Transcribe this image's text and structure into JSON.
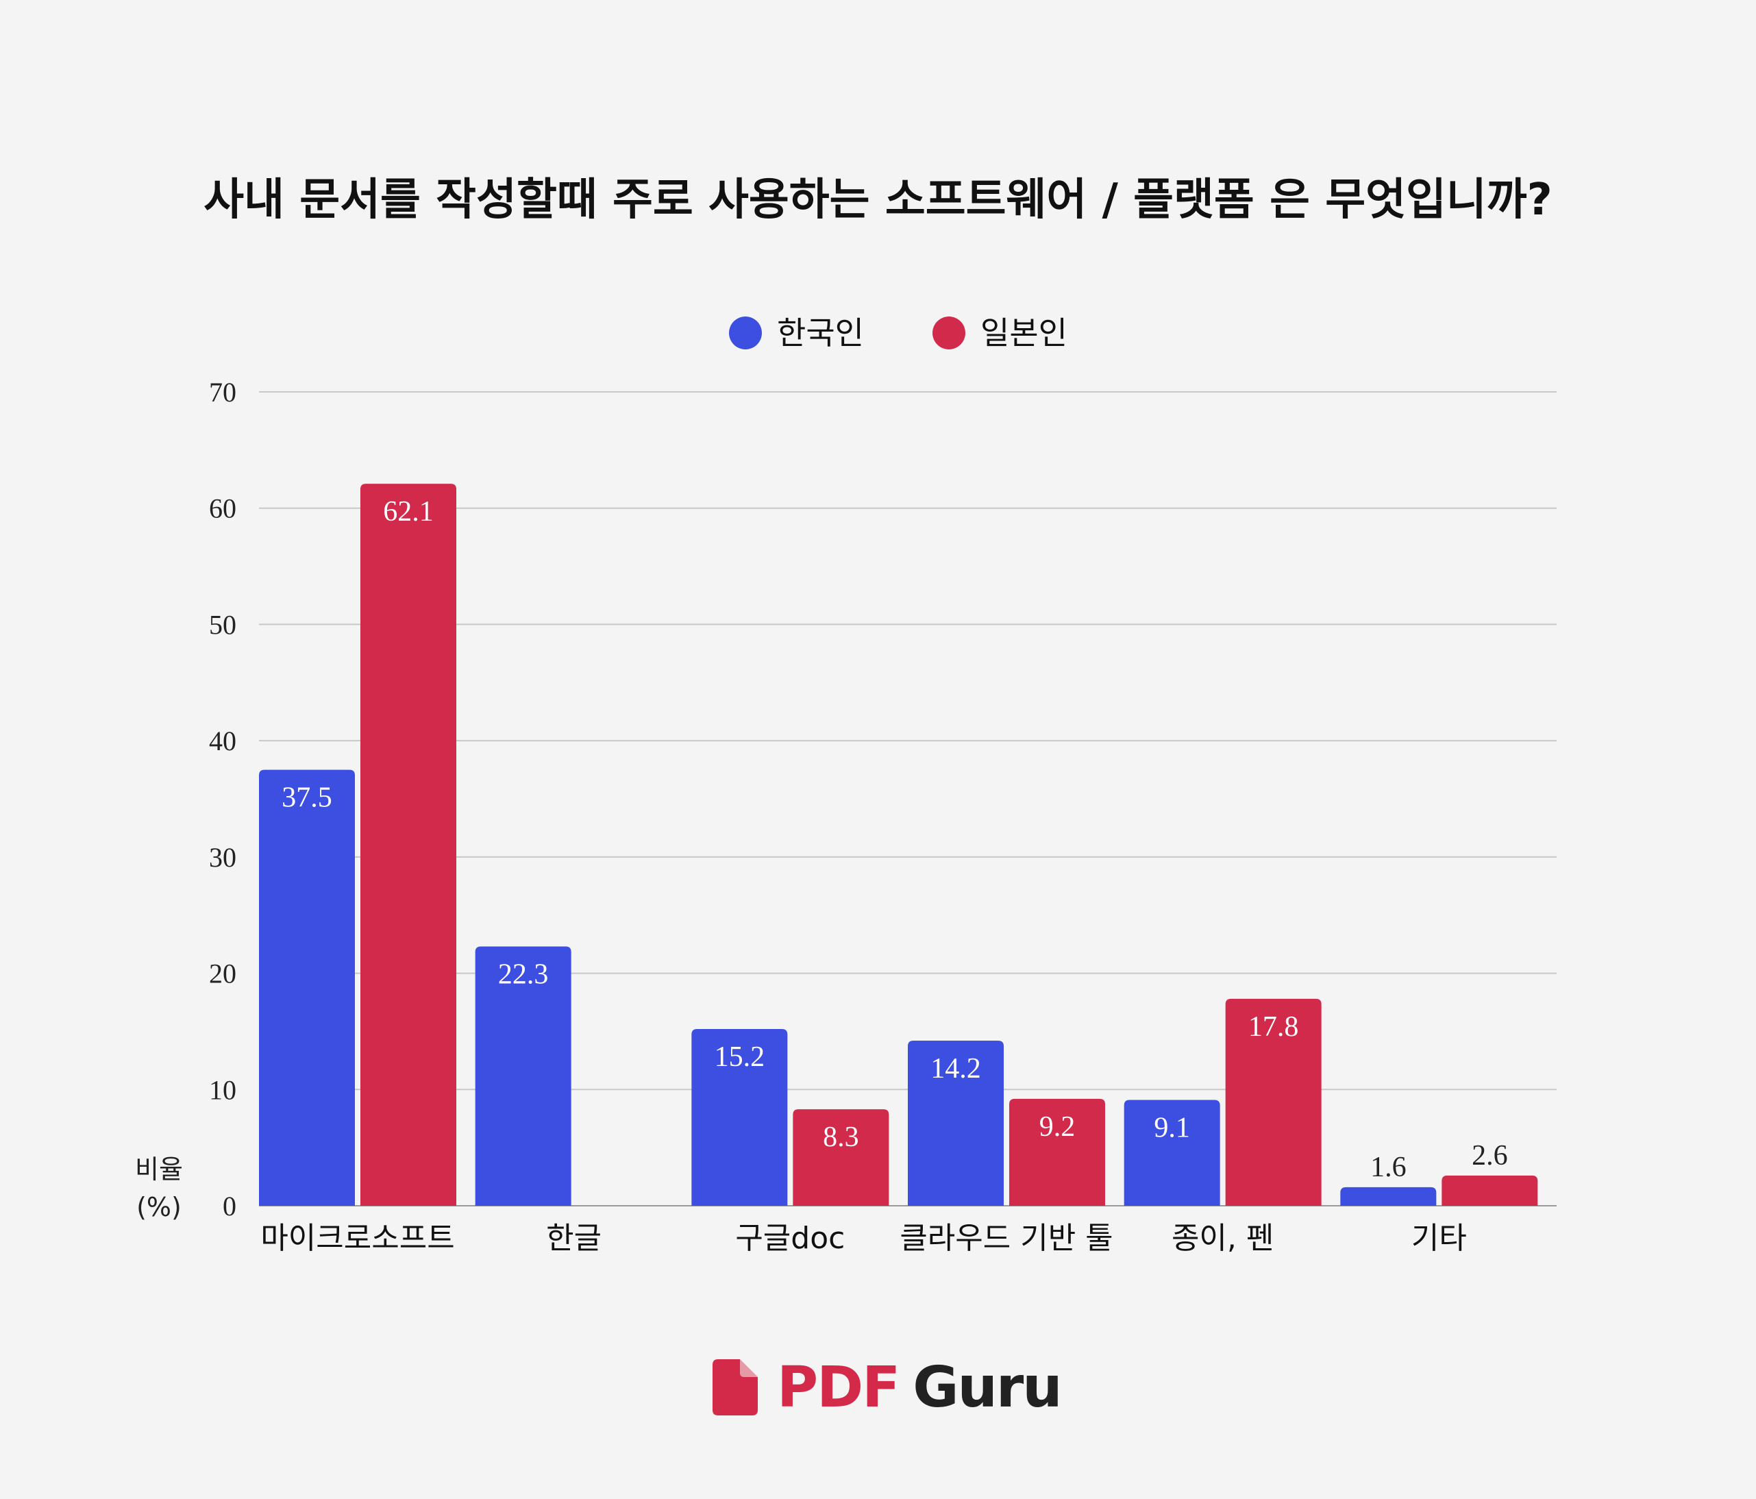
{
  "chart_data": {
    "type": "bar",
    "title": "사내 문서를 작성할때 주로 사용하는 소프트웨어 / 플랫폼 은 무엇입니까?",
    "categories": [
      "마이크로소프트",
      "한글",
      "구글doc",
      "클라우드 기반 툴",
      "종이, 펜",
      "기타"
    ],
    "series": [
      {
        "name": "한국인",
        "color": "#3d4fe0",
        "values": [
          37.5,
          22.3,
          15.2,
          14.2,
          9.1,
          1.6
        ]
      },
      {
        "name": "일본인",
        "color": "#d22a4a",
        "values": [
          62.1,
          null,
          8.3,
          9.2,
          17.8,
          2.6
        ]
      }
    ],
    "value_labels": [
      [
        "37.5",
        "22.3",
        "15.2",
        "14.2",
        "9.1",
        "1.6"
      ],
      [
        "62.1",
        null,
        "8.3",
        "9.2",
        "17.8",
        "2.6"
      ]
    ],
    "ylim": [
      0,
      70
    ],
    "yticks": [
      0,
      10,
      20,
      30,
      40,
      50,
      60,
      70
    ],
    "ylabel": [
      "비율",
      "(%)"
    ],
    "xlabel": "",
    "legend_position": "top-center",
    "grid": true
  },
  "brand": {
    "pdf": "PDF",
    "guru": "Guru",
    "accent_color": "#d42a4a",
    "icon": "document-icon"
  }
}
